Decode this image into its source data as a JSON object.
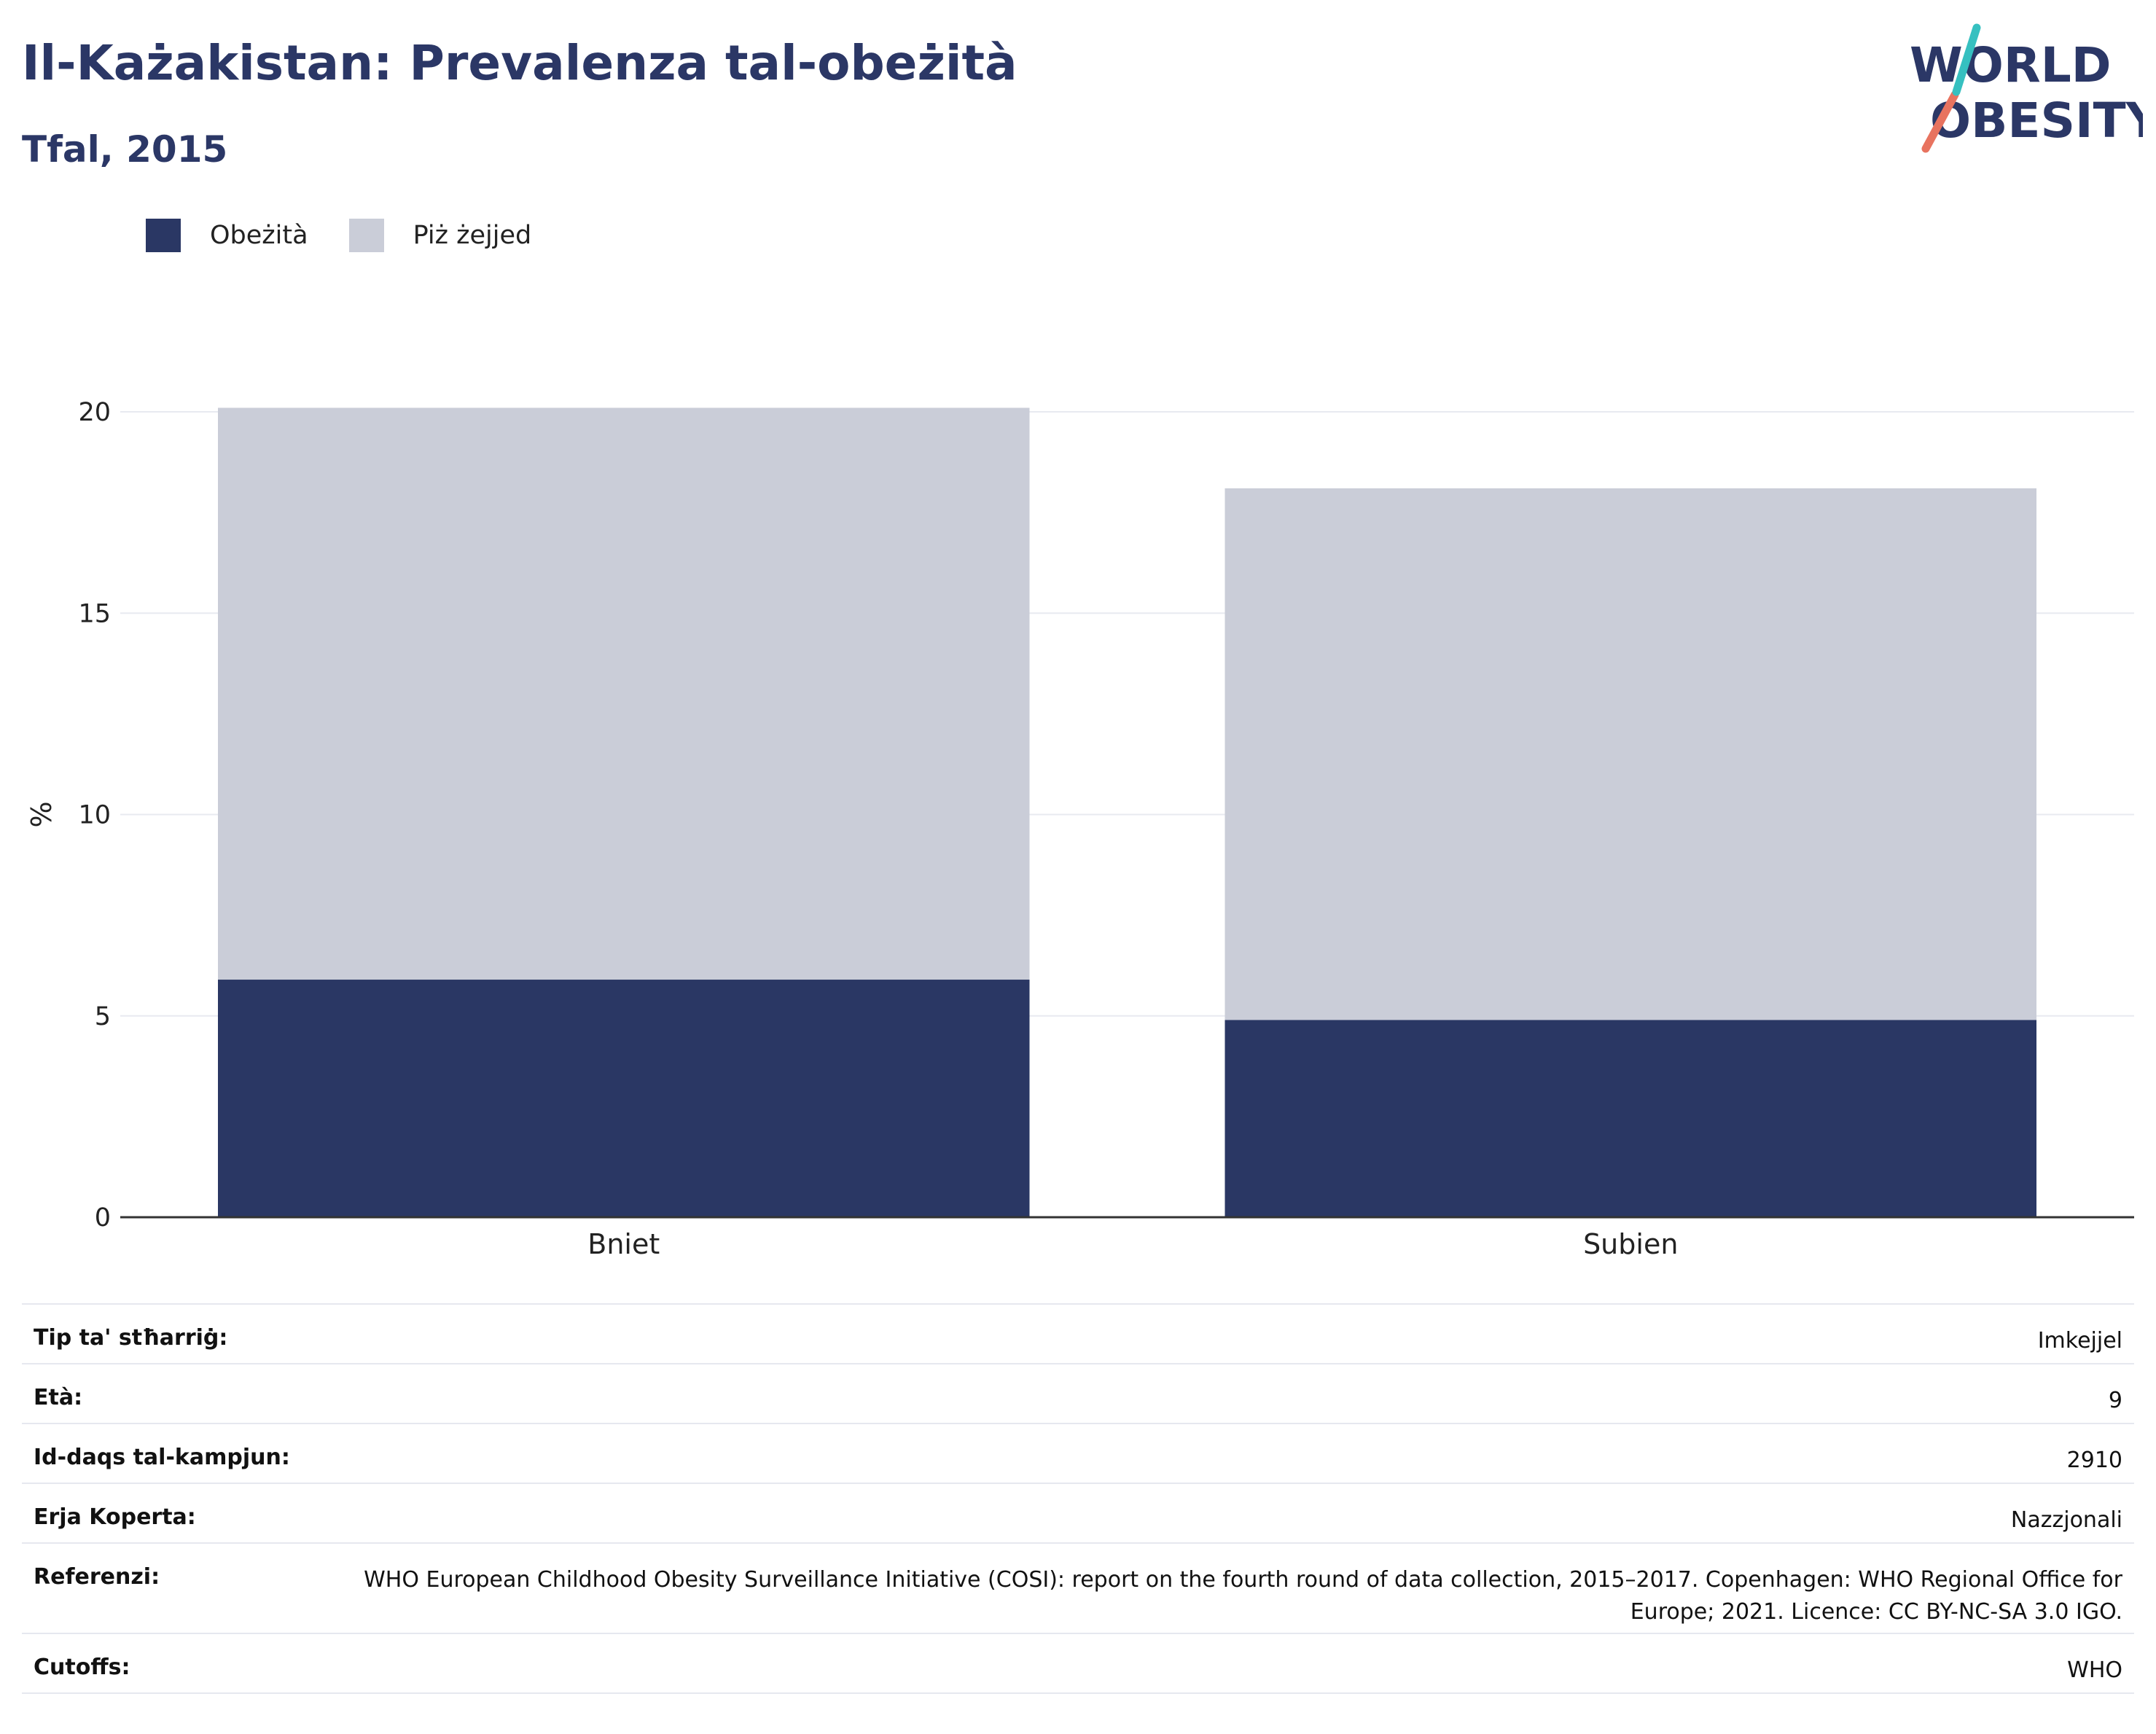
{
  "title": "Il-Każakistan: Prevalenza tal-obeżità",
  "subtitle": "Tfal, 2015",
  "logo": {
    "line1": "WORLD",
    "line2": "OBESITY"
  },
  "legend": [
    {
      "label": "Obeżità",
      "color": "#2a3764"
    },
    {
      "label": "Piż żejjed",
      "color": "#cacdd8"
    }
  ],
  "chart_data": {
    "type": "bar",
    "stacked": true,
    "categories": [
      "Bniet",
      "Subien"
    ],
    "series": [
      {
        "name": "Obeżità",
        "values": [
          5.9,
          4.9
        ],
        "color": "#2a3764"
      },
      {
        "name": "Piż żejjed",
        "values": [
          14.2,
          13.2
        ],
        "color": "#cacdd8"
      }
    ],
    "ylabel": "%",
    "ylim": [
      0,
      20.5
    ],
    "yticks": [
      0,
      5,
      10,
      15,
      20
    ],
    "grid": true,
    "legend_position": "top-left"
  },
  "info": [
    {
      "label": "Tip ta' stħarriġ:",
      "value": "Imkejjel"
    },
    {
      "label": "Età:",
      "value": "9"
    },
    {
      "label": "Id-daqs tal-kampjun:",
      "value": "2910"
    },
    {
      "label": "Erja Koperta:",
      "value": "Nazzjonali"
    },
    {
      "label": "Referenzi:",
      "value": "WHO European Childhood Obesity Surveillance Initiative (COSI): report on the fourth round of data collection, 2015–2017. Copenhagen: WHO Regional Office for Europe; 2021. Licence: CC BY-NC-SA 3.0 IGO."
    },
    {
      "label": "Cutoffs:",
      "value": "WHO"
    }
  ]
}
